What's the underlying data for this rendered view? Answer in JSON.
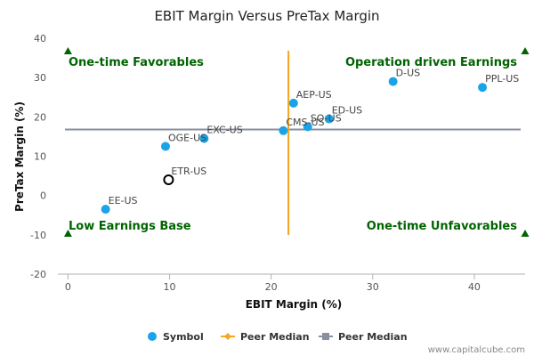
{
  "chart_data": {
    "type": "scatter",
    "title": "EBIT Margin Versus PreTax Margin",
    "xlabel": "EBIT Margin (%)",
    "ylabel": "PreTax Margin (%)",
    "xlim": [
      -1,
      45
    ],
    "ylim": [
      -20,
      40
    ],
    "xticks": [
      0,
      10,
      20,
      30,
      40
    ],
    "yticks": [
      -20,
      -10,
      0,
      10,
      20,
      30,
      40
    ],
    "grid": false,
    "points": [
      {
        "label": "D-US",
        "x": 32.0,
        "y": 29.0,
        "hollow": false
      },
      {
        "label": "PPL-US",
        "x": 40.8,
        "y": 27.5,
        "hollow": false
      },
      {
        "label": "AEP-US",
        "x": 22.2,
        "y": 23.5,
        "hollow": false
      },
      {
        "label": "ED-US",
        "x": 25.7,
        "y": 19.5,
        "hollow": false
      },
      {
        "label": "SO-US",
        "x": 23.6,
        "y": 17.5,
        "hollow": false
      },
      {
        "label": "CMS-US",
        "x": 21.2,
        "y": 16.5,
        "hollow": false
      },
      {
        "label": "EXC-US",
        "x": 13.4,
        "y": 14.5,
        "hollow": false
      },
      {
        "label": "OGE-US",
        "x": 9.6,
        "y": 12.5,
        "hollow": false
      },
      {
        "label": "ETR-US",
        "x": 9.9,
        "y": 4.0,
        "hollow": true
      },
      {
        "label": "EE-US",
        "x": 3.7,
        "y": -3.5,
        "hollow": false
      }
    ],
    "peer_median_x": 21.7,
    "peer_median_y": 16.8,
    "quadrant_labels": {
      "top_left": "One-time Favorables",
      "top_right": "Operation driven Earnings",
      "bottom_left": "Low Earnings Base",
      "bottom_right": "One-time Unfavorables"
    },
    "legend": [
      {
        "name": "Symbol",
        "kind": "dot"
      },
      {
        "name": "Peer Median",
        "kind": "vline"
      },
      {
        "name": "Peer Median",
        "kind": "hline"
      }
    ],
    "legend_position": "bottom-center"
  },
  "credit": "www.capitalcube.com",
  "colors": {
    "point": "#1aa3e8",
    "vline": "#f5a623",
    "hline": "#8a8fa0",
    "quad": "#006400",
    "axis": "#b0b0b0"
  }
}
